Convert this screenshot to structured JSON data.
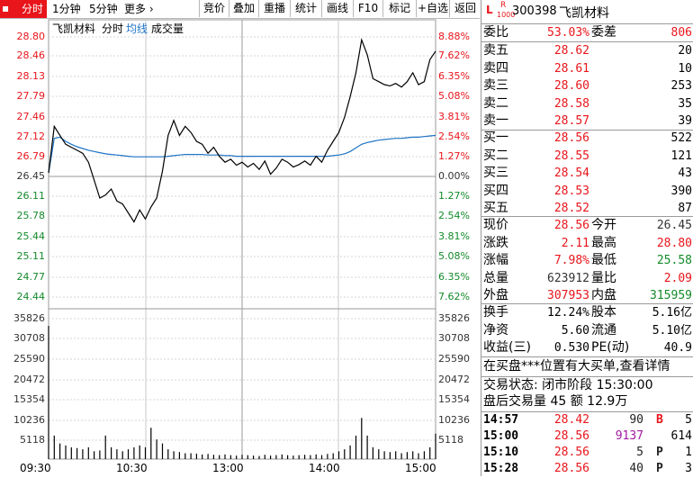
{
  "toolbar": {
    "tabs": [
      "分时",
      "1分钟",
      "5分钟"
    ],
    "more": "更多",
    "buttons": [
      "竞价",
      "叠加",
      "重播",
      "统计",
      "画线",
      "F10",
      "标记",
      "+自选",
      "返回"
    ]
  },
  "chart_header": {
    "name": "飞凯材料",
    "mode": "分时",
    "avg_label": "均线",
    "vol_label": "成交量"
  },
  "colors": {
    "up": "#e8151b",
    "down": "#138a2a",
    "price_line": "#000000",
    "avg_line": "#1f74c6",
    "volume": "#000000"
  },
  "price_axis": {
    "left": [
      "28.80",
      "28.46",
      "28.13",
      "27.79",
      "27.46",
      "27.12",
      "26.79",
      "26.45",
      "26.11",
      "25.78",
      "25.44",
      "25.11",
      "24.77",
      "24.44"
    ],
    "right": [
      "8.88%",
      "7.62%",
      "6.35%",
      "5.08%",
      "3.81%",
      "2.54%",
      "1.27%",
      "0.00%",
      "1.27%",
      "2.54%",
      "3.81%",
      "5.08%",
      "6.35%",
      "7.62%"
    ]
  },
  "volume_axis": {
    "ticks": [
      "35826",
      "30708",
      "25590",
      "20472",
      "15354",
      "10236",
      "5118"
    ]
  },
  "time_axis": [
    "09:30",
    "10:30",
    "13:00",
    "14:00",
    "15:00"
  ],
  "chart_data": {
    "type": "line",
    "x_label_times": [
      "09:30",
      "10:30",
      "13:00",
      "14:00",
      "15:00"
    ],
    "prev_close": 26.45,
    "ylim": [
      24.44,
      28.8
    ],
    "series": [
      {
        "name": "price",
        "values": [
          26.52,
          27.3,
          27.15,
          27.0,
          26.95,
          26.9,
          26.85,
          26.7,
          26.4,
          26.1,
          26.15,
          26.25,
          26.05,
          26.0,
          25.85,
          25.7,
          25.9,
          25.75,
          25.95,
          26.1,
          26.55,
          27.15,
          27.4,
          27.15,
          27.3,
          27.2,
          27.05,
          27.0,
          26.85,
          26.95,
          26.8,
          26.7,
          26.75,
          26.65,
          26.7,
          26.62,
          26.68,
          26.58,
          26.72,
          26.5,
          26.6,
          26.75,
          26.7,
          26.62,
          26.66,
          26.72,
          26.65,
          26.8,
          26.7,
          26.9,
          27.05,
          27.2,
          27.45,
          27.8,
          28.2,
          28.75,
          28.5,
          28.1,
          28.05,
          28.0,
          27.98,
          28.02,
          27.96,
          28.05,
          28.2,
          28.0,
          28.05,
          28.42,
          28.56
        ],
        "color": "#000000"
      },
      {
        "name": "avg",
        "values": [
          26.52,
          27.1,
          27.12,
          27.05,
          27.0,
          26.96,
          26.93,
          26.9,
          26.88,
          26.86,
          26.84,
          26.83,
          26.82,
          26.81,
          26.8,
          26.79,
          26.79,
          26.79,
          26.79,
          26.79,
          26.79,
          26.8,
          26.81,
          26.82,
          26.83,
          26.83,
          26.83,
          26.83,
          26.82,
          26.82,
          26.82,
          26.81,
          26.81,
          26.8,
          26.8,
          26.8,
          26.8,
          26.8,
          26.8,
          26.8,
          26.8,
          26.8,
          26.8,
          26.8,
          26.8,
          26.8,
          26.8,
          26.8,
          26.8,
          26.8,
          26.81,
          26.82,
          26.84,
          26.88,
          26.94,
          27.0,
          27.03,
          27.05,
          27.07,
          27.08,
          27.09,
          27.1,
          27.1,
          27.11,
          27.12,
          27.12,
          27.13,
          27.14,
          27.15
        ],
        "color": "#1f74c6"
      }
    ],
    "volume": [
      34000,
      6000,
      4000,
      3500,
      3000,
      2800,
      2500,
      3000,
      2000,
      2200,
      6000,
      3000,
      2500,
      2000,
      2500,
      3000,
      3500,
      3000,
      8000,
      5000,
      4000,
      2500,
      2000,
      1800,
      1500,
      1500,
      1400,
      1200,
      1300,
      1100,
      1000,
      1200,
      1000,
      900,
      1100,
      1000,
      900,
      800,
      1100,
      900,
      1000,
      1200,
      1000,
      900,
      1000,
      1100,
      1000,
      1200,
      1000,
      1300,
      1500,
      2000,
      2500,
      3500,
      6000,
      10500,
      6000,
      3000,
      2500,
      2000,
      1800,
      2000,
      1500,
      1800,
      2000,
      1500,
      2000,
      3000,
      6500
    ]
  },
  "panel": {
    "code": "300398",
    "name": "飞凯材料",
    "badge_l": "L",
    "badge_r": "R",
    "badge_sub": "1000",
    "weibi_label": "委比",
    "weibi_value": "53.03%",
    "weicha_label": "委差",
    "weicha_value": "806",
    "asks": [
      {
        "label": "卖五",
        "price": "28.62",
        "vol": "20"
      },
      {
        "label": "卖四",
        "price": "28.61",
        "vol": "10"
      },
      {
        "label": "卖三",
        "price": "28.60",
        "vol": "253"
      },
      {
        "label": "卖二",
        "price": "28.58",
        "vol": "35"
      },
      {
        "label": "卖一",
        "price": "28.57",
        "vol": "39"
      }
    ],
    "bids": [
      {
        "label": "买一",
        "price": "28.56",
        "vol": "522"
      },
      {
        "label": "买二",
        "price": "28.55",
        "vol": "121"
      },
      {
        "label": "买三",
        "price": "28.54",
        "vol": "43"
      },
      {
        "label": "买四",
        "price": "28.53",
        "vol": "390"
      },
      {
        "label": "买五",
        "price": "28.52",
        "vol": "87"
      }
    ],
    "quote": [
      {
        "l1": "现价",
        "v1": "28.56",
        "c1": "red",
        "l2": "今开",
        "v2": "26.45",
        "c2": "gray"
      },
      {
        "l1": "涨跌",
        "v1": "2.11",
        "c1": "red",
        "l2": "最高",
        "v2": "28.80",
        "c2": "red"
      },
      {
        "l1": "涨幅",
        "v1": "7.98%",
        "c1": "red",
        "l2": "最低",
        "v2": "25.58",
        "c2": "grn"
      },
      {
        "l1": "总量",
        "v1": "623912",
        "c1": "gray",
        "l2": "量比",
        "v2": "2.09",
        "c2": "red"
      },
      {
        "l1": "外盘",
        "v1": "307953",
        "c1": "red",
        "l2": "内盘",
        "v2": "315959",
        "c2": "grn"
      }
    ],
    "fundamentals": [
      {
        "l1": "换手",
        "v1": "12.24%",
        "l2": "股本",
        "v2": "5.16亿"
      },
      {
        "l1": "净资",
        "v1": "5.60",
        "l2": "流通",
        "v2": "5.10亿"
      },
      {
        "l1": "收益(三)",
        "v1": "0.530",
        "l2": "PE(动)",
        "v2": "40.9"
      }
    ],
    "notice": "在买盘***位置有大买单,查看详情",
    "status_line": "交易状态: 闭市阶段 15:30:00",
    "after_hours": "盘后交易量 45 额 12.9万",
    "ticks": [
      {
        "time": "14:57",
        "price": "28.42",
        "vol": "90",
        "flag": "B",
        "count": "5",
        "vol_color": "gray"
      },
      {
        "time": "15:00",
        "price": "28.56",
        "vol": "9137",
        "flag": "",
        "count": "614",
        "vol_color": "purple"
      },
      {
        "time": "15:10",
        "price": "28.56",
        "vol": "5",
        "flag": "P",
        "count": "1",
        "vol_color": "gray"
      },
      {
        "time": "15:28",
        "price": "28.56",
        "vol": "40",
        "flag": "P",
        "count": "3",
        "vol_color": "gray"
      }
    ]
  }
}
